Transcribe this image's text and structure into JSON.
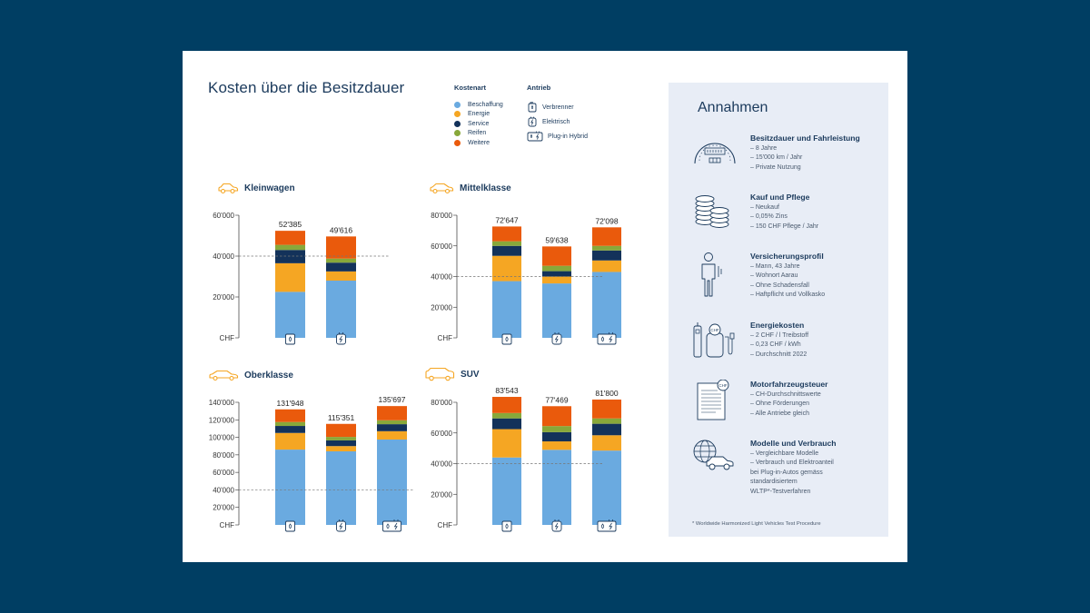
{
  "title": "Kosten über die Besitzdauer",
  "legend": {
    "cost_title": "Kostenart",
    "drive_title": "Antrieb",
    "cost_items": [
      {
        "label": "Beschaffung",
        "color": "#6aaae0"
      },
      {
        "label": "Energie",
        "color": "#f5a623"
      },
      {
        "label": "Service",
        "color": "#13325a"
      },
      {
        "label": "Reifen",
        "color": "#88a83a"
      },
      {
        "label": "Weitere",
        "color": "#ea5a0c"
      }
    ],
    "drive_items": [
      {
        "label": "Verbrenner",
        "icon": "fuel-icon"
      },
      {
        "label": "Elektrisch",
        "icon": "plug-icon"
      },
      {
        "label": "Plug-in Hybrid",
        "icon": "hybrid-icon"
      }
    ]
  },
  "chart_data": [
    {
      "type": "bar",
      "stacked": true,
      "title": "Kleinwagen",
      "ylim": [
        0,
        60000
      ],
      "yticks": [
        "CHF",
        "20'000",
        "40'000",
        "60'000"
      ],
      "reference_line": 40000,
      "categories": [
        "Verbrenner",
        "Elektrisch"
      ],
      "totals": [
        "52'385",
        "49'616"
      ],
      "series": [
        {
          "name": "Beschaffung",
          "values": [
            22500,
            28000
          ]
        },
        {
          "name": "Energie",
          "values": [
            14000,
            4500
          ]
        },
        {
          "name": "Service",
          "values": [
            6500,
            4300
          ]
        },
        {
          "name": "Reifen",
          "values": [
            2500,
            2000
          ]
        },
        {
          "name": "Weitere",
          "values": [
            6885,
            10816
          ]
        }
      ]
    },
    {
      "type": "bar",
      "stacked": true,
      "title": "Mittelklasse",
      "ylim": [
        0,
        80000
      ],
      "yticks": [
        "CHF",
        "20'000",
        "40'000",
        "60'000",
        "80'000"
      ],
      "reference_line": 40000,
      "categories": [
        "Verbrenner",
        "Elektrisch",
        "Plug-in Hybrid"
      ],
      "totals": [
        "72'647",
        "59'638",
        "72'098"
      ],
      "series": [
        {
          "name": "Beschaffung",
          "values": [
            37000,
            35500,
            43000
          ]
        },
        {
          "name": "Energie",
          "values": [
            16500,
            4500,
            7500
          ]
        },
        {
          "name": "Service",
          "values": [
            6500,
            3500,
            6500
          ]
        },
        {
          "name": "Reifen",
          "values": [
            3000,
            3500,
            3000
          ]
        },
        {
          "name": "Weitere",
          "values": [
            9647,
            12638,
            12098
          ]
        }
      ]
    },
    {
      "type": "bar",
      "stacked": true,
      "title": "Oberklasse",
      "ylim": [
        0,
        140000
      ],
      "yticks": [
        "CHF",
        "20'000",
        "40'000",
        "60'000",
        "80'000",
        "100'000",
        "120'000",
        "140'000"
      ],
      "reference_line": 40000,
      "categories": [
        "Verbrenner",
        "Elektrisch",
        "Plug-in Hybrid"
      ],
      "totals": [
        "131'948",
        "115'351",
        "135'697"
      ],
      "series": [
        {
          "name": "Beschaffung",
          "values": [
            86000,
            84000,
            97500
          ]
        },
        {
          "name": "Energie",
          "values": [
            19000,
            6000,
            9500
          ]
        },
        {
          "name": "Service",
          "values": [
            8000,
            6500,
            8000
          ]
        },
        {
          "name": "Reifen",
          "values": [
            4500,
            4000,
            4500
          ]
        },
        {
          "name": "Weitere",
          "values": [
            14448,
            14851,
            16197
          ]
        }
      ]
    },
    {
      "type": "bar",
      "stacked": true,
      "title": "SUV",
      "ylim": [
        0,
        80000
      ],
      "yticks": [
        "CHF",
        "20'000",
        "40'000",
        "60'000",
        "80'000"
      ],
      "reference_line": 40000,
      "categories": [
        "Verbrenner",
        "Elektrisch",
        "Plug-in Hybrid"
      ],
      "totals": [
        "83'543",
        "77'469",
        "81'800"
      ],
      "series": [
        {
          "name": "Beschaffung",
          "values": [
            44000,
            49000,
            48500
          ]
        },
        {
          "name": "Energie",
          "values": [
            18500,
            5500,
            10000
          ]
        },
        {
          "name": "Service",
          "values": [
            7000,
            6000,
            7500
          ]
        },
        {
          "name": "Reifen",
          "values": [
            3500,
            4000,
            3500
          ]
        },
        {
          "name": "Weitere",
          "values": [
            10543,
            12969,
            12300
          ]
        }
      ]
    }
  ],
  "assumptions": {
    "title": "Annahmen",
    "items": [
      {
        "heading": "Besitzdauer und Fahrleistung",
        "icon": "speedometer-icon",
        "lines": [
          "– 8 Jahre",
          "– 15'000 km / Jahr",
          "– Private Nutzung"
        ]
      },
      {
        "heading": "Kauf und Pflege",
        "icon": "coins-icon",
        "lines": [
          "– Neukauf",
          "– 0,05% Zins",
          "– 150 CHF Pflege / Jahr"
        ]
      },
      {
        "heading": "Versicherungsprofil",
        "icon": "person-icon",
        "lines": [
          "– Mann, 43 Jahre",
          "– Wohnort Aarau",
          "– Ohne Schadensfall",
          "– Haftpflicht und Vollkasko"
        ]
      },
      {
        "heading": "Energiekosten",
        "icon": "charging-station-icon",
        "lines": [
          "– 2 CHF / l Treibstoff",
          "– 0,23 CHF / kWh",
          "– Durchschnitt 2022"
        ]
      },
      {
        "heading": "Motorfahrzeugsteuer",
        "icon": "tax-document-icon",
        "lines": [
          "– CH-Durchschnittswerte",
          "– Ohne Förderungen",
          "– Alle Antriebe gleich"
        ]
      },
      {
        "heading": "Modelle und Verbrauch",
        "icon": "globe-car-icon",
        "lines": [
          "– Vergleichbare Modelle",
          "– Verbrauch und Elektroanteil",
          "  bei Plug-in-Autos gemäss",
          "  standardisiertem",
          "  WLTP*-Testverfahren"
        ]
      }
    ],
    "footnote": "* Worldwide Harmonized Light Vehicles Test Procedure"
  }
}
